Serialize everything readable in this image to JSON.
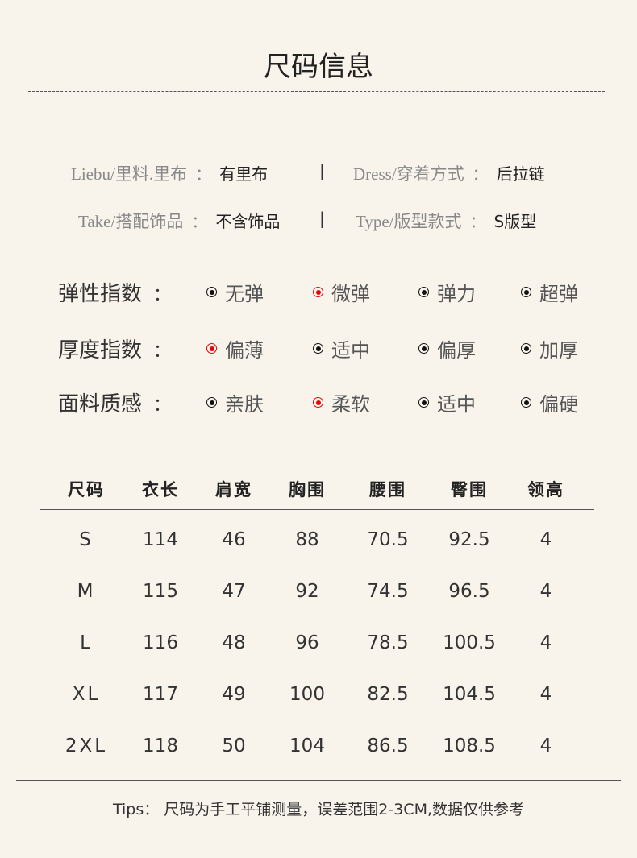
{
  "title": "尺码信息",
  "info": [
    {
      "key": "Liebu/里料.里布",
      "value": "有里布"
    },
    {
      "key": "Dress/穿着方式",
      "value": "后拉链"
    },
    {
      "key": "Take/搭配饰品",
      "value": "不含饰品"
    },
    {
      "key": "Type/版型款式",
      "value": "S版型"
    }
  ],
  "colon": "：",
  "separator": "|",
  "indices": [
    {
      "label": "弹性指数",
      "options": [
        "无弹",
        "微弹",
        "弹力",
        "超弹"
      ],
      "selected": 1
    },
    {
      "label": "厚度指数",
      "options": [
        "偏薄",
        "适中",
        "偏厚",
        "加厚"
      ],
      "selected": 0
    },
    {
      "label": "面料质感",
      "options": [
        "亲肤",
        "柔软",
        "适中",
        "偏硬"
      ],
      "selected": 1
    }
  ],
  "colors": {
    "selected": "#ee0000",
    "background": "#f8f4ec"
  },
  "table": {
    "headers": [
      "尺码",
      "衣长",
      "肩宽",
      "胸围",
      "腰围",
      "臀围",
      "领高"
    ],
    "rows": [
      [
        "S",
        "114",
        "46",
        "88",
        "70.5",
        "92.5",
        "4"
      ],
      [
        "M",
        "115",
        "47",
        "92",
        "74.5",
        "96.5",
        "4"
      ],
      [
        "L",
        "116",
        "48",
        "96",
        "78.5",
        "100.5",
        "4"
      ],
      [
        "XL",
        "117",
        "49",
        "100",
        "82.5",
        "104.5",
        "4"
      ],
      [
        "2XL",
        "118",
        "50",
        "104",
        "86.5",
        "108.5",
        "4"
      ]
    ]
  },
  "tips": "Tips： 尺码为手工平铺测量，误差范围2-3CM,数据仅供参考"
}
